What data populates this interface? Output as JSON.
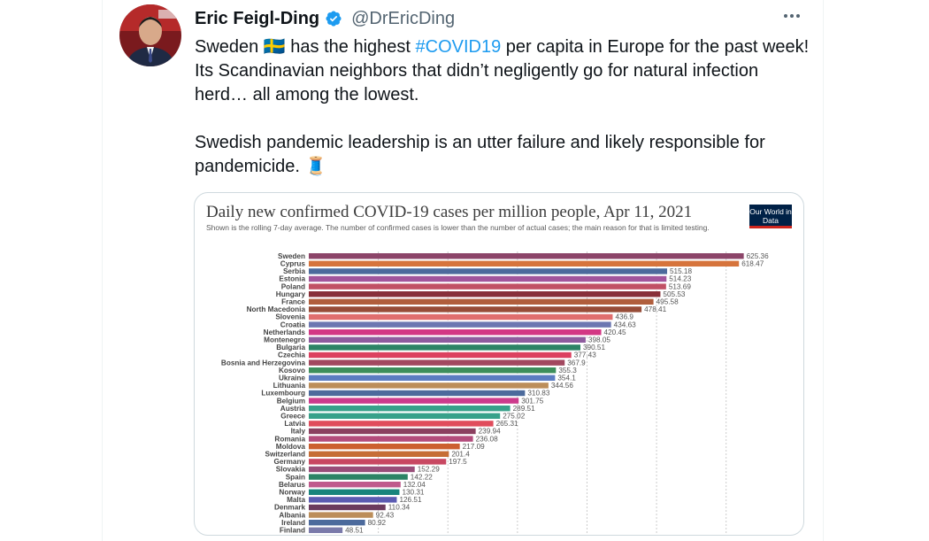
{
  "tweet": {
    "author_name": "Eric Feigl-Ding",
    "handle": "@DrEricDing",
    "text_part1": "Sweden ",
    "flag_emoji": "🇸🇪",
    "text_part2": " has the highest ",
    "hashtag": "#COVID19",
    "text_part3": " per capita in Europe for the past week!\nIts Scandinavian neighbors that didn’t negligently go for natural infection herd… all among the lowest.\n\nSwedish pandemic leadership is an utter failure and likely responsible for pandemicide. ",
    "end_emoji": "🧵",
    "icons": {
      "verified": "verified-badge-icon",
      "more": "more-options-icon"
    }
  },
  "colors": {
    "accent": "#1d9bf0",
    "verified": "#1d9bf0",
    "text": "#0f1419",
    "muted": "#536471"
  },
  "chart_data": {
    "type": "bar",
    "title": "Daily new confirmed COVID-19 cases per million people, Apr 11, 2021",
    "subtitle": "Shown is the rolling 7-day average. The number of confirmed cases is lower than the number of actual cases; the main reason for that is limited testing.",
    "source_logo_text": "Our World in Data",
    "orientation": "horizontal",
    "xlim": [
      0,
      650
    ],
    "grid": true,
    "categories": [
      "Sweden",
      "Cyprus",
      "Serbia",
      "Estonia",
      "Poland",
      "Hungary",
      "France",
      "North Macedonia",
      "Slovenia",
      "Croatia",
      "Netherlands",
      "Montenegro",
      "Bulgaria",
      "Czechia",
      "Bosnia and Herzegovina",
      "Kosovo",
      "Ukraine",
      "Lithuania",
      "Luxembourg",
      "Belgium",
      "Austria",
      "Greece",
      "Latvia",
      "Italy",
      "Romania",
      "Moldova",
      "Switzerland",
      "Germany",
      "Slovakia",
      "Spain",
      "Belarus",
      "Norway",
      "Malta",
      "Denmark",
      "Albania",
      "Ireland",
      "Finland"
    ],
    "values": [
      625.36,
      618.47,
      515.18,
      514.23,
      513.69,
      505.53,
      495.58,
      478.41,
      436.9,
      434.63,
      420.45,
      398.05,
      390.51,
      377.43,
      367.9,
      355.3,
      354.1,
      344.56,
      310.83,
      301.75,
      289.51,
      275.02,
      265.31,
      239.94,
      236.08,
      217.09,
      201.4,
      197.5,
      152.29,
      142.22,
      132.04,
      130.31,
      126.51,
      110.34,
      92.43,
      80.92,
      48.51
    ],
    "value_labels": [
      "625.36",
      "618.47",
      "515.18",
      "514.23",
      "513.69",
      "505.53",
      "495.58",
      "478.41",
      "436.9",
      "434.63",
      "420.45",
      "398.05",
      "390.51",
      "377.43",
      "367.9",
      "355.3",
      "354.1",
      "344.56",
      "310.83",
      "301.75",
      "289.51",
      "275.02",
      "265.31",
      "239.94",
      "236.08",
      "217.09",
      "201.4",
      "197.5",
      "152.29",
      "142.22",
      "132.04",
      "130.31",
      "126.51",
      "110.34",
      "92.43",
      "80.92",
      "48.51"
    ],
    "bar_colors": [
      "#8c4569",
      "#d6743c",
      "#4c6a9c",
      "#a2559c",
      "#c15065",
      "#883039",
      "#b05e3c",
      "#974c37",
      "#e06e6e",
      "#6d77b1",
      "#d33784",
      "#8e5c9e",
      "#2c8465",
      "#dc4060",
      "#a2485f",
      "#3d8e5c",
      "#5b7cc2",
      "#bc8e5a",
      "#4c6a9c",
      "#cc3b8c",
      "#38a18a",
      "#38a18a",
      "#e04c5c",
      "#8b4060",
      "#b44c7c",
      "#cc6030",
      "#c66e36",
      "#c84862",
      "#994e79",
      "#2c8465",
      "#bf5a8c",
      "#18847c",
      "#5b5bb2",
      "#6b3b5e",
      "#bc8e5a",
      "#4c6a9c",
      "#7a7aaa"
    ]
  }
}
